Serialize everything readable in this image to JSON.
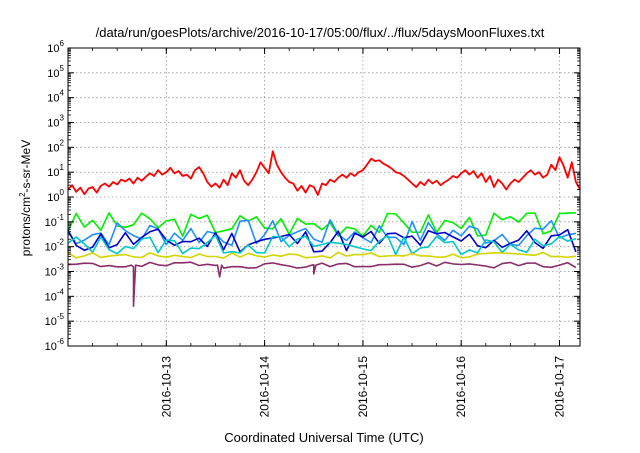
{
  "chart_data": {
    "type": "line",
    "title": "/data/run/goesPlots/archive/2016-10-17/05:00/flux/../flux/5daysMoonFluxes.txt",
    "xlabel": "Coordinated Universal Time (UTC)",
    "ylabel_parts": {
      "pre": "protons/cm",
      "sup": "2",
      "post": "-s-sr-MeV"
    },
    "x_range": [
      "2016-10-12 00:00",
      "2016-10-17 05:00"
    ],
    "y_scale": "log",
    "ylim": [
      1e-06,
      1000000.0
    ],
    "grid": true,
    "x_ticks": [
      "2016-10-13",
      "2016-10-14",
      "2016-10-15",
      "2016-10-16",
      "2016-10-17"
    ],
    "y_ticks": [
      {
        "value": 1e-06,
        "base": "10",
        "exp": "-6"
      },
      {
        "value": 1e-05,
        "base": "10",
        "exp": "-5"
      },
      {
        "value": 0.0001,
        "base": "10",
        "exp": "-4"
      },
      {
        "value": 0.001,
        "base": "10",
        "exp": "-3"
      },
      {
        "value": 0.01,
        "base": "10",
        "exp": "-2"
      },
      {
        "value": 0.1,
        "base": "10",
        "exp": "-1"
      },
      {
        "value": 1,
        "base": "10",
        "exp": "0"
      },
      {
        "value": 10.0,
        "base": "10",
        "exp": "1"
      },
      {
        "value": 100.0,
        "base": "10",
        "exp": "2"
      },
      {
        "value": 1000.0,
        "base": "10",
        "exp": "3"
      },
      {
        "value": 10000.0,
        "base": "10",
        "exp": "4"
      },
      {
        "value": 100000.0,
        "base": "10",
        "exp": "5"
      },
      {
        "value": 1000000.0,
        "base": "10",
        "exp": "6"
      }
    ],
    "series": [
      {
        "color": "#ff0000",
        "points": [
          [
            "2016-10-12 00:00",
            2.0
          ],
          [
            "2016-10-12 01:00",
            3.0
          ],
          [
            "2016-10-12 02:00",
            1.6
          ],
          [
            "2016-10-12 03:00",
            2.4
          ],
          [
            "2016-10-12 04:00",
            1.3
          ],
          [
            "2016-10-12 05:00",
            2.2
          ],
          [
            "2016-10-12 06:00",
            2.5
          ],
          [
            "2016-10-12 07:00",
            1.5
          ],
          [
            "2016-10-12 08:00",
            2.8
          ],
          [
            "2016-10-12 09:00",
            3.5
          ],
          [
            "2016-10-12 10:00",
            2.6
          ],
          [
            "2016-10-12 11:00",
            4.0
          ],
          [
            "2016-10-12 12:00",
            3.2
          ],
          [
            "2016-10-12 13:00",
            5.0
          ],
          [
            "2016-10-12 14:00",
            4.2
          ],
          [
            "2016-10-12 15:00",
            5.5
          ],
          [
            "2016-10-12 16:00",
            3.5
          ],
          [
            "2016-10-12 17:00",
            6.0
          ],
          [
            "2016-10-12 18:00",
            4.5
          ],
          [
            "2016-10-12 19:00",
            6.5
          ],
          [
            "2016-10-12 20:00",
            9.0
          ],
          [
            "2016-10-12 21:00",
            7.0
          ],
          [
            "2016-10-12 22:00",
            12.0
          ],
          [
            "2016-10-12 23:00",
            8.0
          ],
          [
            "2016-10-13 00:00",
            10.0
          ],
          [
            "2016-10-13 01:00",
            15.0
          ],
          [
            "2016-10-13 02:00",
            9.0
          ],
          [
            "2016-10-13 03:00",
            11.0
          ],
          [
            "2016-10-13 04:00",
            7.0
          ],
          [
            "2016-10-13 05:00",
            8.0
          ],
          [
            "2016-10-13 06:00",
            5.5
          ],
          [
            "2016-10-13 07:00",
            12.0
          ],
          [
            "2016-10-13 08:00",
            16.0
          ],
          [
            "2016-10-13 09:00",
            9.0
          ],
          [
            "2016-10-13 10:00",
            4.0
          ],
          [
            "2016-10-13 11:00",
            2.6
          ],
          [
            "2016-10-13 12:00",
            3.5
          ],
          [
            "2016-10-13 13:00",
            2.4
          ],
          [
            "2016-10-13 14:00",
            5.0
          ],
          [
            "2016-10-13 15:00",
            3.0
          ],
          [
            "2016-10-13 16:00",
            9.0
          ],
          [
            "2016-10-13 17:00",
            6.0
          ],
          [
            "2016-10-13 18:00",
            12.0
          ],
          [
            "2016-10-13 19:00",
            4.5
          ],
          [
            "2016-10-13 20:00",
            3.0
          ],
          [
            "2016-10-13 21:00",
            5.0
          ],
          [
            "2016-10-13 22:00",
            10.0
          ],
          [
            "2016-10-13 23:00",
            25.0
          ],
          [
            "2016-10-14 00:00",
            15.0
          ],
          [
            "2016-10-14 01:00",
            9.0
          ],
          [
            "2016-10-14 02:00",
            70.0
          ],
          [
            "2016-10-14 03:00",
            20.0
          ],
          [
            "2016-10-14 04:00",
            10.0
          ],
          [
            "2016-10-14 05:00",
            6.0
          ],
          [
            "2016-10-14 06:00",
            4.0
          ],
          [
            "2016-10-14 07:00",
            3.5
          ],
          [
            "2016-10-14 08:00",
            1.8
          ],
          [
            "2016-10-14 09:00",
            2.8
          ],
          [
            "2016-10-14 10:00",
            1.5
          ],
          [
            "2016-10-14 11:00",
            3.0
          ],
          [
            "2016-10-14 12:00",
            2.5
          ],
          [
            "2016-10-14 13:00",
            1.2
          ],
          [
            "2016-10-14 14:00",
            3.5
          ],
          [
            "2016-10-14 15:00",
            3.0
          ],
          [
            "2016-10-14 16:00",
            5.0
          ],
          [
            "2016-10-14 17:00",
            4.0
          ],
          [
            "2016-10-14 18:00",
            6.0
          ],
          [
            "2016-10-14 19:00",
            8.0
          ],
          [
            "2016-10-14 20:00",
            6.0
          ],
          [
            "2016-10-14 21:00",
            9.0
          ],
          [
            "2016-10-14 22:00",
            7.0
          ],
          [
            "2016-10-14 23:00",
            10.0
          ],
          [
            "2016-10-15 00:00",
            12.0
          ],
          [
            "2016-10-15 01:00",
            20.0
          ],
          [
            "2016-10-15 02:00",
            35.0
          ],
          [
            "2016-10-15 03:00",
            28.0
          ],
          [
            "2016-10-15 04:00",
            30.0
          ],
          [
            "2016-10-15 05:00",
            22.0
          ],
          [
            "2016-10-15 06:00",
            18.0
          ],
          [
            "2016-10-15 07:00",
            14.0
          ],
          [
            "2016-10-15 08:00",
            10.0
          ],
          [
            "2016-10-15 09:00",
            9.0
          ],
          [
            "2016-10-15 10:00",
            7.0
          ],
          [
            "2016-10-15 11:00",
            5.0
          ],
          [
            "2016-10-15 12:00",
            3.5
          ],
          [
            "2016-10-15 13:00",
            2.5
          ],
          [
            "2016-10-15 14:00",
            4.0
          ],
          [
            "2016-10-15 15:00",
            3.0
          ],
          [
            "2016-10-15 16:00",
            5.0
          ],
          [
            "2016-10-15 17:00",
            3.5
          ],
          [
            "2016-10-15 18:00",
            4.5
          ],
          [
            "2016-10-15 19:00",
            3.0
          ],
          [
            "2016-10-15 20:00",
            4.0
          ],
          [
            "2016-10-15 21:00",
            5.0
          ],
          [
            "2016-10-15 22:00",
            7.0
          ],
          [
            "2016-10-15 23:00",
            6.0
          ],
          [
            "2016-10-16 00:00",
            9.0
          ],
          [
            "2016-10-16 01:00",
            12.0
          ],
          [
            "2016-10-16 02:00",
            8.0
          ],
          [
            "2016-10-16 03:00",
            11.0
          ],
          [
            "2016-10-16 04:00",
            6.0
          ],
          [
            "2016-10-16 05:00",
            9.0
          ],
          [
            "2016-10-16 06:00",
            4.0
          ],
          [
            "2016-10-16 07:00",
            7.0
          ],
          [
            "2016-10-16 08:00",
            2.5
          ],
          [
            "2016-10-16 09:00",
            5.0
          ],
          [
            "2016-10-16 10:00",
            3.5
          ],
          [
            "2016-10-16 11:00",
            2.0
          ],
          [
            "2016-10-16 12:00",
            3.5
          ],
          [
            "2016-10-16 13:00",
            5.0
          ],
          [
            "2016-10-16 14:00",
            4.0
          ],
          [
            "2016-10-16 15:00",
            6.0
          ],
          [
            "2016-10-16 16:00",
            9.0
          ],
          [
            "2016-10-16 17:00",
            12.0
          ],
          [
            "2016-10-16 18:00",
            8.0
          ],
          [
            "2016-10-16 19:00",
            10.0
          ],
          [
            "2016-10-16 20:00",
            6.0
          ],
          [
            "2016-10-16 21:00",
            8.0
          ],
          [
            "2016-10-16 22:00",
            20.0
          ],
          [
            "2016-10-16 23:00",
            12.0
          ],
          [
            "2016-10-17 00:00",
            40.0
          ],
          [
            "2016-10-17 01:00",
            18.0
          ],
          [
            "2016-10-17 02:00",
            6.0
          ],
          [
            "2016-10-17 03:00",
            25.0
          ],
          [
            "2016-10-17 04:00",
            4.0
          ],
          [
            "2016-10-17 05:00",
            2.0
          ]
        ]
      },
      {
        "color": "#00ee00",
        "base": 0.08,
        "amp": 0.5,
        "seed": 3,
        "dips": []
      },
      {
        "color": "#1e90ff",
        "base": 0.035,
        "amp": 0.55,
        "seed": 7,
        "dips": []
      },
      {
        "color": "#0000cd",
        "base": 0.018,
        "amp": 0.5,
        "seed": 11,
        "dips": []
      },
      {
        "color": "#00c8c8",
        "base": 0.012,
        "amp": 0.4,
        "seed": 13,
        "dips": []
      },
      {
        "color": "#d4d400",
        "base": 0.0045,
        "amp": 0.12,
        "seed": 17,
        "dips": []
      },
      {
        "color": "#8b2f6b",
        "base": 0.0018,
        "amp": 0.12,
        "seed": 19,
        "dips": [
          [
            "2016-10-12 16:00",
            4e-05
          ],
          [
            "2016-10-13 13:00",
            0.0006
          ],
          [
            "2016-10-14 12:00",
            0.0008
          ]
        ]
      }
    ]
  }
}
